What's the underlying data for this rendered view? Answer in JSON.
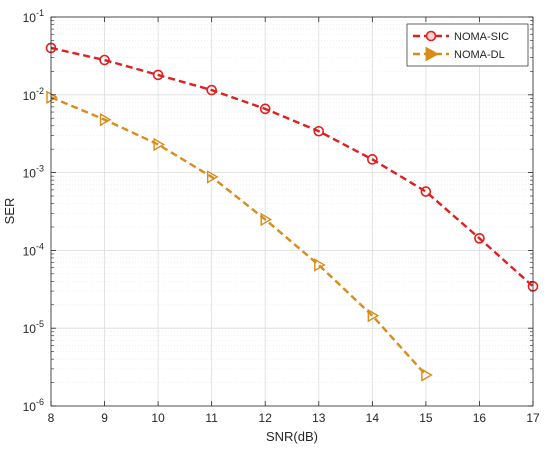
{
  "chart_data": {
    "type": "line",
    "title": "",
    "xlabel": "SNR(dB)",
    "ylabel": "SER",
    "xlim": [
      8,
      17
    ],
    "ylim_exponent": [
      -6,
      -1
    ],
    "yscale": "log",
    "grid": true,
    "minor_grid": true,
    "legend_position": "top-right",
    "x_ticks": [
      8,
      9,
      10,
      11,
      12,
      13,
      14,
      15,
      16,
      17
    ],
    "y_tick_labels": [
      {
        "base": "10",
        "exp": "-1",
        "value_exp": -1
      },
      {
        "base": "10",
        "exp": "-2",
        "value_exp": -2
      },
      {
        "base": "10",
        "exp": "-3",
        "value_exp": -3
      },
      {
        "base": "10",
        "exp": "-4",
        "value_exp": -4
      },
      {
        "base": "10",
        "exp": "-5",
        "value_exp": -5
      },
      {
        "base": "10",
        "exp": "-6",
        "value_exp": -6
      }
    ],
    "series": [
      {
        "name": "NOMA-SIC",
        "color": "#e02020",
        "marker": "circle",
        "x": [
          8,
          9,
          10,
          11,
          12,
          13,
          14,
          15,
          16,
          17
        ],
        "y": [
          0.04,
          0.028,
          0.018,
          0.0115,
          0.0066,
          0.0034,
          0.00148,
          0.00057,
          0.000143,
          3.45e-05
        ]
      },
      {
        "name": "NOMA-DL",
        "color": "#d98c19",
        "marker": "triangle-right",
        "x": [
          8,
          9,
          10,
          11,
          12,
          13,
          14,
          15
        ],
        "y": [
          0.0093,
          0.0048,
          0.0023,
          0.00088,
          0.00025,
          6.5e-05,
          1.45e-05,
          2.5e-06
        ]
      }
    ]
  }
}
